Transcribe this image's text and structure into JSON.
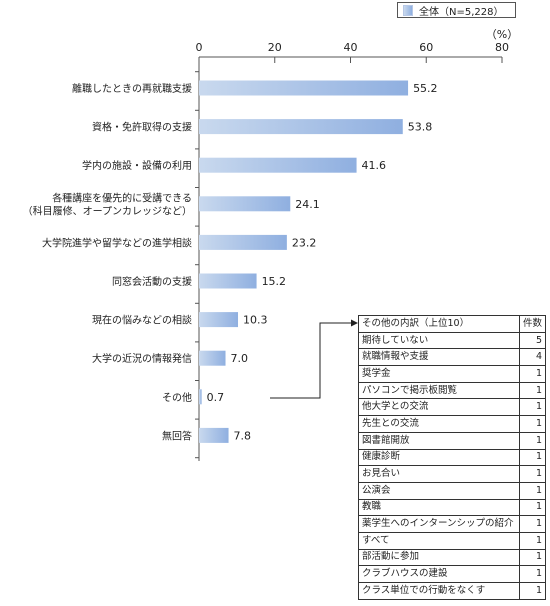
{
  "legend": {
    "label": "全体（N=5,228）"
  },
  "chart_data": {
    "type": "bar",
    "orientation": "horizontal",
    "unit_label": "（%）",
    "xlim": [
      0,
      80
    ],
    "ticks": [
      "0",
      "20",
      "40",
      "60",
      "80"
    ],
    "tick_values": [
      0,
      20,
      40,
      60,
      80
    ],
    "series": [
      {
        "name": "全体（N=5,228）"
      }
    ],
    "categories": [
      [
        "離職したときの再就職支援"
      ],
      [
        "資格・免許取得の支援"
      ],
      [
        "学内の施設・設備の利用"
      ],
      [
        "各種講座を優先的に受講できる",
        "（科目履修、オープンカレッジなど）"
      ],
      [
        "大学院進学や留学などの進学相談"
      ],
      [
        "同窓会活動の支援"
      ],
      [
        "現在の悩みなどの相談"
      ],
      [
        "大学の近況の情報発信"
      ],
      [
        "その他"
      ],
      [
        "無回答"
      ]
    ],
    "values": [
      55.2,
      53.8,
      41.6,
      24.1,
      23.2,
      15.2,
      10.3,
      7.0,
      0.7,
      7.8
    ],
    "value_labels": [
      "55.2",
      "53.8",
      "41.6",
      "24.1",
      "23.2",
      "15.2",
      "10.3",
      "7.0",
      "0.7",
      "7.8"
    ],
    "colors": {
      "bar_start": "#c9d9ee",
      "bar_end": "#8fafe0",
      "axis": "#555555"
    }
  },
  "breakdown": {
    "title": "その他の内訳（上位10）",
    "count_header": "件数",
    "rows": [
      {
        "name": "期待していない",
        "count": "5"
      },
      {
        "name": "就職情報や支援",
        "count": "4"
      },
      {
        "name": "奨学金",
        "count": "1"
      },
      {
        "name": "パソコンで掲示板閲覧",
        "count": "1"
      },
      {
        "name": "他大学との交流",
        "count": "1"
      },
      {
        "name": "先生との交流",
        "count": "1"
      },
      {
        "name": "図書館開放",
        "count": "1"
      },
      {
        "name": "健康診断",
        "count": "1"
      },
      {
        "name": "お見合い",
        "count": "1"
      },
      {
        "name": "公演会",
        "count": "1"
      },
      {
        "name": "教職",
        "count": "1"
      },
      {
        "name": "薬学生へのインターンシップの紹介",
        "count": "1"
      },
      {
        "name": "すべて",
        "count": "1"
      },
      {
        "name": "部活動に参加",
        "count": "1"
      },
      {
        "name": "クラブハウスの建設",
        "count": "1"
      },
      {
        "name": "クラス単位での行動をなくす",
        "count": "1"
      }
    ]
  }
}
